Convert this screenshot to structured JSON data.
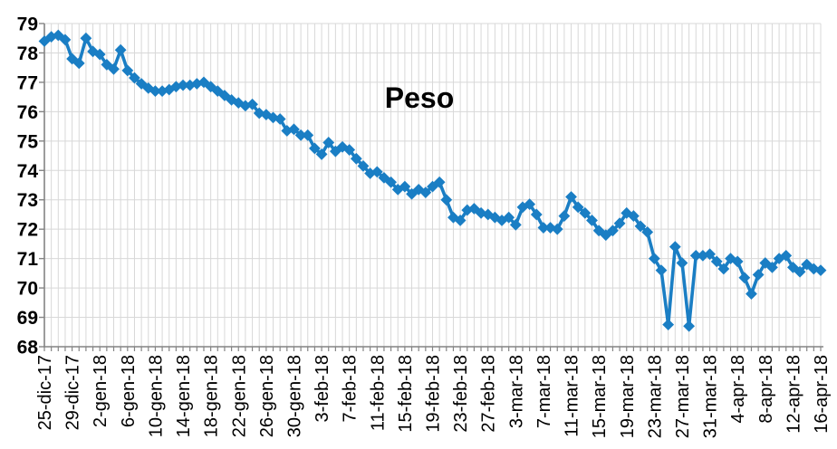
{
  "colors": {
    "series_blue": "#1A7EC4",
    "gridline_gray": "#D8D8D8",
    "axis_gray": "#848484",
    "text_black": "#000000",
    "background": "#FFFFFF"
  },
  "chart_data": {
    "type": "line",
    "title": "Peso",
    "legend": "none",
    "grid": "both",
    "marker": "diamond",
    "ylim": [
      68,
      79
    ],
    "y_ticks": [
      "68",
      "69",
      "70",
      "71",
      "72",
      "73",
      "74",
      "75",
      "76",
      "77",
      "78",
      "79"
    ],
    "x_tick_interval": 4,
    "x": [
      "25-dic-17",
      "26-dic-17",
      "27-dic-17",
      "28-dic-17",
      "29-dic-17",
      "30-dic-17",
      "31-dic-17",
      "1-gen-18",
      "2-gen-18",
      "3-gen-18",
      "4-gen-18",
      "5-gen-18",
      "6-gen-18",
      "7-gen-18",
      "8-gen-18",
      "9-gen-18",
      "10-gen-18",
      "11-gen-18",
      "12-gen-18",
      "13-gen-18",
      "14-gen-18",
      "15-gen-18",
      "16-gen-18",
      "17-gen-18",
      "18-gen-18",
      "19-gen-18",
      "20-gen-18",
      "21-gen-18",
      "22-gen-18",
      "23-gen-18",
      "24-gen-18",
      "25-gen-18",
      "26-gen-18",
      "27-gen-18",
      "28-gen-18",
      "29-gen-18",
      "30-gen-18",
      "31-gen-18",
      "1-feb-18",
      "2-feb-18",
      "3-feb-18",
      "4-feb-18",
      "5-feb-18",
      "6-feb-18",
      "7-feb-18",
      "8-feb-18",
      "9-feb-18",
      "10-feb-18",
      "11-feb-18",
      "12-feb-18",
      "13-feb-18",
      "14-feb-18",
      "15-feb-18",
      "16-feb-18",
      "17-feb-18",
      "18-feb-18",
      "19-feb-18",
      "20-feb-18",
      "21-feb-18",
      "22-feb-18",
      "23-feb-18",
      "24-feb-18",
      "25-feb-18",
      "26-feb-18",
      "27-feb-18",
      "28-feb-18",
      "1-mar-18",
      "2-mar-18",
      "3-mar-18",
      "4-mar-18",
      "5-mar-18",
      "6-mar-18",
      "7-mar-18",
      "8-mar-18",
      "9-mar-18",
      "10-mar-18",
      "11-mar-18",
      "12-mar-18",
      "13-mar-18",
      "14-mar-18",
      "15-mar-18",
      "16-mar-18",
      "17-mar-18",
      "18-mar-18",
      "19-mar-18",
      "20-mar-18",
      "21-mar-18",
      "22-mar-18",
      "23-mar-18",
      "24-mar-18",
      "25-mar-18",
      "26-mar-18",
      "27-mar-18",
      "28-mar-18",
      "29-mar-18",
      "30-mar-18",
      "31-mar-18",
      "1-apr-18",
      "2-apr-18",
      "3-apr-18",
      "4-apr-18",
      "5-apr-18",
      "6-apr-18",
      "7-apr-18",
      "8-apr-18",
      "9-apr-18",
      "10-apr-18",
      "11-apr-18",
      "12-apr-18",
      "13-apr-18",
      "14-apr-18",
      "15-apr-18",
      "16-apr-18"
    ],
    "values": [
      78.4,
      78.55,
      78.6,
      78.45,
      77.8,
      77.65,
      78.5,
      78.05,
      77.95,
      77.6,
      77.45,
      78.1,
      77.4,
      77.15,
      76.95,
      76.8,
      76.7,
      76.7,
      76.75,
      76.85,
      76.9,
      76.9,
      76.95,
      77.0,
      76.85,
      76.7,
      76.55,
      76.4,
      76.3,
      76.2,
      76.25,
      75.95,
      75.9,
      75.8,
      75.75,
      75.35,
      75.4,
      75.2,
      75.2,
      74.75,
      74.55,
      74.95,
      74.65,
      74.8,
      74.7,
      74.4,
      74.15,
      73.9,
      73.95,
      73.75,
      73.6,
      73.35,
      73.45,
      73.2,
      73.35,
      73.25,
      73.45,
      73.6,
      73.0,
      72.4,
      72.3,
      72.65,
      72.7,
      72.55,
      72.5,
      72.4,
      72.3,
      72.4,
      72.15,
      72.75,
      72.85,
      72.5,
      72.05,
      72.05,
      72.0,
      72.45,
      73.1,
      72.75,
      72.55,
      72.3,
      71.95,
      71.8,
      71.95,
      72.2,
      72.55,
      72.45,
      72.1,
      71.9,
      71.0,
      70.6,
      68.75,
      71.4,
      70.85,
      68.7,
      71.1,
      71.1,
      71.15,
      70.9,
      70.65,
      71.0,
      70.9,
      70.35,
      69.8,
      70.45,
      70.85,
      70.7,
      71.0,
      71.1,
      70.7,
      70.55,
      70.8,
      70.65,
      70.6
    ]
  }
}
